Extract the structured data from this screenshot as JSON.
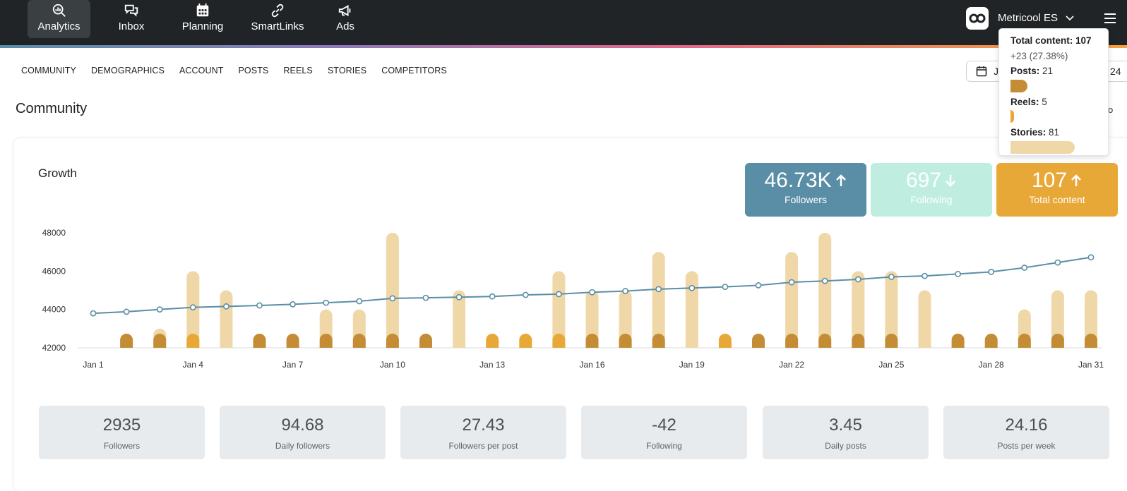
{
  "nav": {
    "items": [
      {
        "label": "Analytics",
        "icon": "analytics-icon",
        "active": true
      },
      {
        "label": "Inbox",
        "icon": "inbox-icon"
      },
      {
        "label": "Planning",
        "icon": "calendar-icon"
      },
      {
        "label": "SmartLinks",
        "icon": "link-icon"
      },
      {
        "label": "Ads",
        "icon": "megaphone-icon"
      }
    ],
    "brand": "Metricool ES"
  },
  "subnav": [
    "COMMUNITY",
    "DEMOGRAPHICS",
    "ACCOUNT",
    "POSTS",
    "REELS",
    "STORIES",
    "COMPETITORS"
  ],
  "date_range": {
    "start": "Ja",
    "end": "24"
  },
  "section_title": "Community",
  "right_cut_text": "ricoo",
  "growth": {
    "title": "Growth"
  },
  "kpis": [
    {
      "value": "46.73K",
      "label": "Followers",
      "trend": "up",
      "color": "#5a8ea6"
    },
    {
      "value": "697",
      "label": "Following",
      "trend": "down",
      "color": "#bfeee0"
    },
    {
      "value": "107",
      "label": "Total content",
      "trend": "up",
      "color": "#e8a838"
    }
  ],
  "stats": [
    {
      "value": "2935",
      "label": "Followers"
    },
    {
      "value": "94.68",
      "label": "Daily followers"
    },
    {
      "value": "27.43",
      "label": "Followers per post"
    },
    {
      "value": "-42",
      "label": "Following"
    },
    {
      "value": "3.45",
      "label": "Daily posts"
    },
    {
      "value": "24.16",
      "label": "Posts per week"
    }
  ],
  "tooltip": {
    "title": "Total content:",
    "title_value": "107",
    "delta": "+23 (27.38%)",
    "rows": [
      {
        "label": "Posts:",
        "value": "21",
        "fraction": 0.26,
        "color": "#c48d35"
      },
      {
        "label": "Reels:",
        "value": "5",
        "fraction": 0.06,
        "color": "#e8a838"
      },
      {
        "label": "Stories:",
        "value": "81",
        "fraction": 1.0,
        "color": "#f0d7a8"
      }
    ]
  },
  "chart_data": {
    "type": "bar",
    "x": [
      "Jan 1",
      "Jan 2",
      "Jan 3",
      "Jan 4",
      "Jan 5",
      "Jan 6",
      "Jan 7",
      "Jan 8",
      "Jan 9",
      "Jan 10",
      "Jan 11",
      "Jan 12",
      "Jan 13",
      "Jan 14",
      "Jan 15",
      "Jan 16",
      "Jan 17",
      "Jan 18",
      "Jan 19",
      "Jan 20",
      "Jan 21",
      "Jan 22",
      "Jan 23",
      "Jan 24",
      "Jan 25",
      "Jan 26",
      "Jan 27",
      "Jan 28",
      "Jan 29",
      "Jan 30",
      "Jan 31"
    ],
    "x_ticks": [
      "Jan 1",
      "Jan 4",
      "Jan 7",
      "Jan 10",
      "Jan 13",
      "Jan 16",
      "Jan 19",
      "Jan 22",
      "Jan 25",
      "Jan 28",
      "Jan 31"
    ],
    "y_ticks": [
      "42000",
      "44000",
      "46000",
      "48000"
    ],
    "ylim": [
      42000,
      48000
    ],
    "followers": [
      43800,
      43880,
      44000,
      44110,
      44160,
      44210,
      44270,
      44350,
      44430,
      44580,
      44610,
      44640,
      44680,
      44760,
      44800,
      44900,
      44960,
      45060,
      45120,
      45180,
      45260,
      45420,
      45490,
      45570,
      45700,
      45750,
      45850,
      45960,
      46180,
      46450,
      46720
    ],
    "stories": [
      0,
      0,
      1,
      4,
      3,
      0,
      0,
      2,
      2,
      6,
      0,
      3,
      0,
      0,
      4,
      3,
      3,
      5,
      4,
      0,
      0,
      5,
      6,
      4,
      4,
      3,
      0,
      0,
      2,
      3,
      3
    ],
    "posts": [
      0,
      1,
      1,
      0,
      0,
      1,
      1,
      1,
      1,
      1,
      1,
      0,
      0,
      0,
      0,
      1,
      1,
      1,
      0,
      0,
      1,
      1,
      1,
      1,
      1,
      0,
      1,
      1,
      1,
      1,
      1
    ],
    "reels": [
      0,
      0,
      0,
      1,
      0,
      0,
      0,
      0,
      0,
      0,
      0,
      0,
      1,
      1,
      1,
      0,
      0,
      0,
      0,
      1,
      0,
      0,
      0,
      0,
      0,
      0,
      0,
      0,
      0,
      0,
      0
    ],
    "series_colors": {
      "followers": "#5a8ea6",
      "stories": "#f0d7a8",
      "posts": "#c48d35",
      "reels": "#e8a838"
    }
  }
}
